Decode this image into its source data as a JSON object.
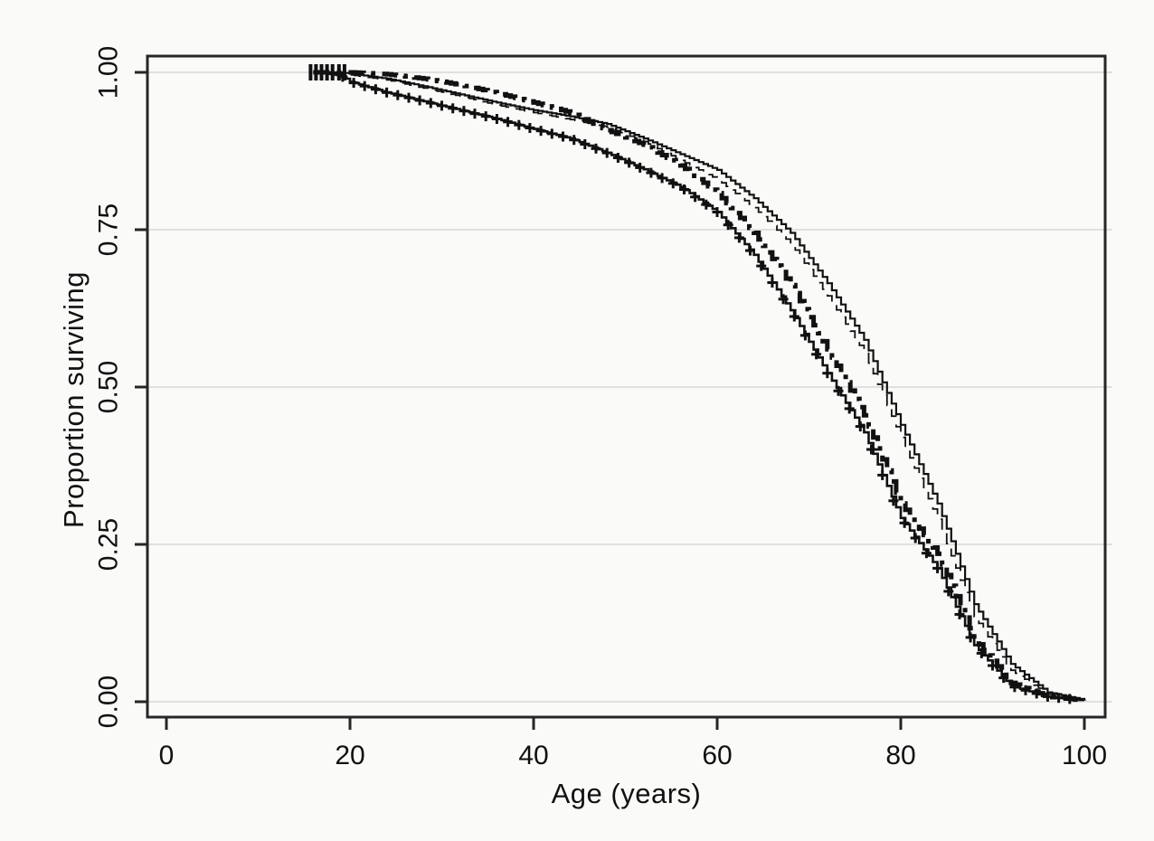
{
  "chart_data": {
    "type": "line",
    "subtype": "kaplan-meier-survival-curves",
    "title": "",
    "xlabel": "Age (years)",
    "ylabel": "Proportion surviving",
    "xlim": [
      0,
      100
    ],
    "ylim": [
      0.0,
      1.0
    ],
    "grid": "horizontal-only",
    "legend": "none",
    "x_ticks": [
      {
        "label": "0",
        "value": 0
      },
      {
        "label": "20",
        "value": 20
      },
      {
        "label": "40",
        "value": 40
      },
      {
        "label": "60",
        "value": 60
      },
      {
        "label": "80",
        "value": 80
      },
      {
        "label": "100",
        "value": 100
      }
    ],
    "y_ticks": [
      {
        "label": "1.00",
        "value": 1.0
      },
      {
        "label": "0.75",
        "value": 0.75
      },
      {
        "label": "0.50",
        "value": 0.5
      },
      {
        "label": "0.25",
        "value": 0.25
      },
      {
        "label": "0.00",
        "value": 0.0
      }
    ],
    "ages": [
      16,
      19,
      20,
      24,
      28,
      32,
      36,
      40,
      44,
      48,
      52,
      56,
      60,
      64,
      68,
      72,
      76,
      80,
      84,
      88,
      92,
      96,
      100
    ],
    "series": [
      {
        "name": "survival-curve-a-solid",
        "line_style": "thin solid line",
        "style": "solid-thin",
        "values": [
          1.0,
          1.0,
          0.998,
          0.99,
          0.978,
          0.965,
          0.952,
          0.94,
          0.93,
          0.918,
          0.895,
          0.87,
          0.845,
          0.8,
          0.745,
          0.665,
          0.575,
          0.44,
          0.315,
          0.155,
          0.06,
          0.015,
          0.003
        ]
      },
      {
        "name": "survival-curve-b-dashed",
        "line_style": "thin dashed line",
        "style": "dashed-thin",
        "values": [
          1.0,
          1.0,
          0.996,
          0.988,
          0.975,
          0.962,
          0.948,
          0.936,
          0.925,
          0.913,
          0.89,
          0.86,
          0.83,
          0.785,
          0.728,
          0.645,
          0.555,
          0.42,
          0.29,
          0.135,
          0.05,
          0.012,
          0.003
        ]
      },
      {
        "name": "survival-curve-c-dashdot",
        "line_style": "thick dash-dot line",
        "style": "dashdot-thick",
        "values": [
          1.0,
          1.0,
          1.0,
          0.997,
          0.99,
          0.98,
          0.967,
          0.952,
          0.936,
          0.908,
          0.885,
          0.852,
          0.808,
          0.745,
          0.662,
          0.56,
          0.455,
          0.315,
          0.235,
          0.1,
          0.03,
          0.008,
          0.002
        ]
      },
      {
        "name": "survival-curve-d-plus-censored",
        "line_style": "solid line with plus censor marks",
        "style": "solid-censored",
        "values": [
          1.0,
          0.995,
          0.985,
          0.968,
          0.954,
          0.94,
          0.926,
          0.91,
          0.895,
          0.872,
          0.846,
          0.818,
          0.778,
          0.71,
          0.622,
          0.522,
          0.428,
          0.292,
          0.212,
          0.09,
          0.025,
          0.008,
          0.002
        ]
      }
    ],
    "start_censor_tick_ages": [
      15.7,
      16.3,
      16.9,
      17.5,
      18.1,
      18.8,
      19.4
    ],
    "colors": {
      "line": "#111111",
      "grid": "#d0d0d0",
      "frame": "#262626",
      "background": "#fafaf9",
      "text": "#111111"
    }
  }
}
